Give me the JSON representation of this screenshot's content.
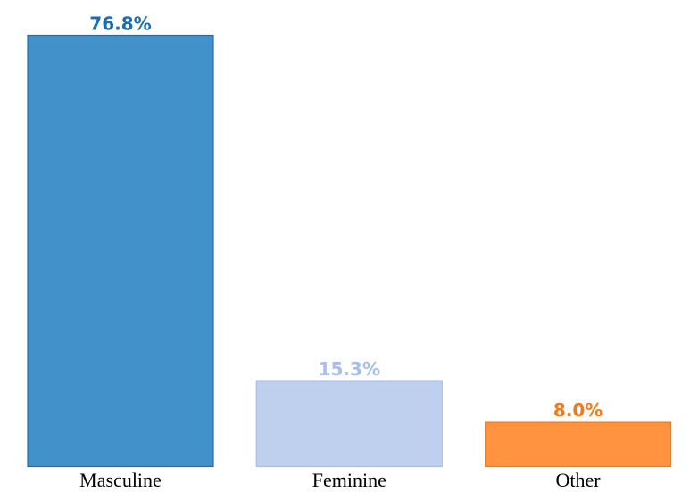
{
  "chart_data": {
    "type": "bar",
    "title": "",
    "xlabel": "",
    "ylabel": "",
    "ylim": [
      0,
      76.8
    ],
    "grid": false,
    "legend": "none",
    "categories": [
      "Masculine",
      "Feminine",
      "Other"
    ],
    "values": [
      76.8,
      15.3,
      8.0
    ],
    "value_labels": [
      "76.8%",
      "15.3%",
      "8.0%"
    ],
    "colors": {
      "fill": [
        "#4391CB",
        "#BFD0EF",
        "#FF933F"
      ],
      "stroke": [
        "#1A6DB3",
        "#A7BFEA",
        "#F47A18"
      ],
      "label": [
        "#1A6DB3",
        "#A7BFEA",
        "#F47A18"
      ]
    }
  }
}
